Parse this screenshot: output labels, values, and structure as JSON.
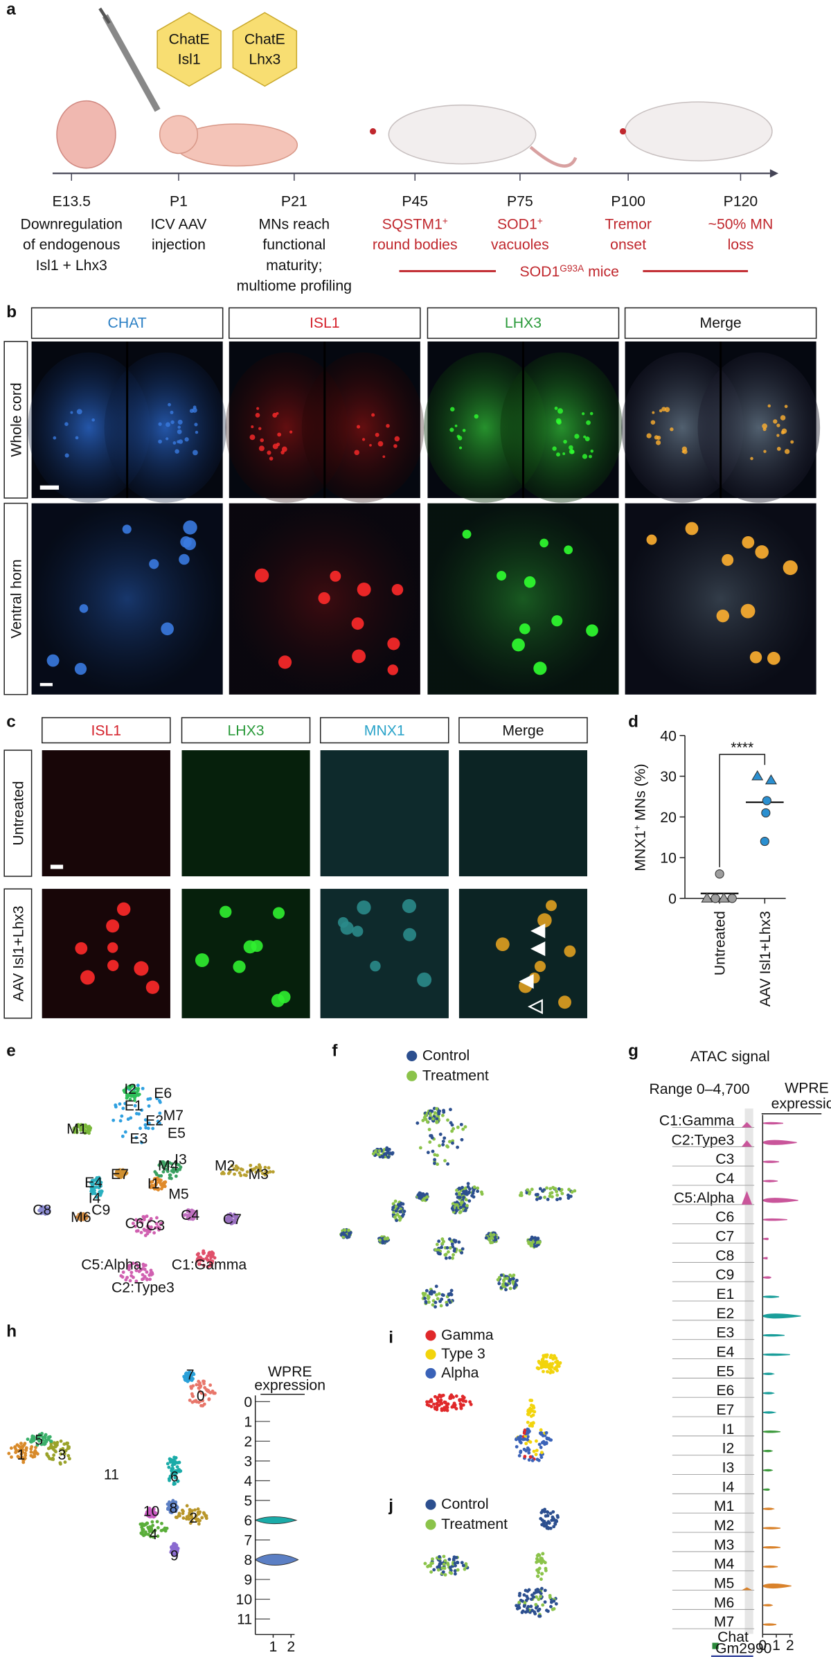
{
  "figure": {
    "a": {
      "label": "a",
      "vectors": [
        [
          "ChatE",
          "Isl1"
        ],
        [
          "ChatE",
          "Lhx3"
        ]
      ],
      "timeline": [
        {
          "time": "E13.5",
          "lines": [
            "Downregulation",
            "of endogenous",
            "Isl1 + Lhx3"
          ]
        },
        {
          "time": "P1",
          "lines": [
            "ICV AAV",
            "injection"
          ]
        },
        {
          "time": "P21",
          "lines": [
            "MNs reach",
            "functional",
            "maturity;",
            "multiome profiling"
          ]
        },
        {
          "time": "P45",
          "lines": [
            {
              "text": "SQSTM1",
              "sup": "+"
            },
            "round bodies"
          ],
          "color": "#c0272d"
        },
        {
          "time": "P75",
          "lines": [
            {
              "text": "SOD1",
              "sup": "+"
            },
            "vacuoles"
          ],
          "color": "#c0272d"
        },
        {
          "time": "P100",
          "lines": [
            "Tremor",
            "onset"
          ],
          "color": "#c0272d"
        },
        {
          "time": "P120",
          "lines": [
            "~50% MN",
            "loss"
          ],
          "color": "#c0272d"
        }
      ],
      "model": {
        "text": "SOD1",
        "sup": "G93A",
        "after": " mice"
      },
      "model_color": "#c0272d"
    },
    "b": {
      "label": "b",
      "columns": [
        {
          "name": "CHAT",
          "color": "#2a7fc4"
        },
        {
          "name": "ISL1",
          "color": "#d4202a"
        },
        {
          "name": "LHX3",
          "color": "#2a9a3a"
        },
        {
          "name": "Merge",
          "color": "#111111"
        }
      ],
      "rows": [
        "Whole cord",
        "Ventral horn"
      ]
    },
    "c": {
      "label": "c",
      "columns": [
        {
          "name": "ISL1",
          "color": "#d4202a"
        },
        {
          "name": "LHX3",
          "color": "#2a9a3a"
        },
        {
          "name": "MNX1",
          "color": "#29a3c9"
        },
        {
          "name": "Merge",
          "color": "#111111"
        }
      ],
      "rows": [
        "Untreated",
        "AAV Isl1+Lhx3"
      ]
    },
    "e": {
      "label": "e",
      "clusters": [
        "I2",
        "E6",
        "E1",
        "M7",
        "E2",
        "E3",
        "E5",
        "M1",
        "M2",
        "M3",
        "E4",
        "E7",
        "M4",
        "I3",
        "I1",
        "M5",
        "C8",
        "I4",
        "C9",
        "M6",
        "C6",
        "C3",
        "C4",
        "C7",
        "C5:Alpha",
        "C1:Gamma",
        "C2:Type3"
      ]
    },
    "f": {
      "label": "f",
      "legend": [
        {
          "name": "Control",
          "color": "#2c4f8f"
        },
        {
          "name": "Treatment",
          "color": "#8bc34a"
        }
      ]
    },
    "i": {
      "label": "i",
      "legend": [
        {
          "name": "Gamma",
          "color": "#e0282a"
        },
        {
          "name": "Type 3",
          "color": "#f2d40c"
        },
        {
          "name": "Alpha",
          "color": "#3a62b8"
        }
      ]
    },
    "j": {
      "label": "j",
      "legend": [
        {
          "name": "Control",
          "color": "#2c4f8f"
        },
        {
          "name": "Treatment",
          "color": "#8bc34a"
        }
      ]
    }
  },
  "chart_data": [
    {
      "type": "dot",
      "label": "d",
      "ylabel": {
        "text": "MNX1",
        "sup": "+",
        "after": " MNs (%)"
      },
      "categories": [
        "Untreated",
        "AAV Isl1+Lhx3"
      ],
      "values": [
        [
          0,
          0,
          0,
          0,
          6
        ],
        [
          30,
          29,
          24,
          21,
          14
        ]
      ],
      "means": [
        1.2,
        23.6
      ],
      "colors": [
        "#9e9e9e",
        "#2a8fd0"
      ],
      "markers": [
        [
          "triangle",
          "circle",
          "triangle",
          "circle",
          "circle"
        ],
        [
          "triangle",
          "triangle",
          "circle",
          "circle",
          "circle"
        ]
      ],
      "significance": "****",
      "ylim": [
        0,
        40
      ],
      "yticks": [
        0,
        10,
        20,
        30,
        40
      ]
    },
    {
      "type": "violin",
      "label": "g",
      "title": "ATAC signal",
      "range_label": "Range 0–4,700",
      "xlabel": [
        "WPRE",
        "expression"
      ],
      "categories": [
        "C1:Gamma",
        "C2:Type3",
        "C3",
        "C4",
        "C5:Alpha",
        "C6",
        "C7",
        "C8",
        "C9",
        "E1",
        "E2",
        "E3",
        "E4",
        "E5",
        "E6",
        "E7",
        "I1",
        "I2",
        "I3",
        "I4",
        "M1",
        "M2",
        "M3",
        "M4",
        "M5",
        "M6",
        "M7"
      ],
      "values": [
        1.5,
        2.5,
        1.2,
        1.1,
        2.6,
        1.8,
        0.4,
        0.3,
        0.6,
        1.2,
        2.8,
        1.6,
        2.0,
        0.8,
        0.8,
        0.9,
        1.3,
        0.7,
        0.7,
        0.5,
        0.8,
        1.3,
        1.3,
        1.1,
        2.1,
        0.7,
        1.0
      ],
      "atac_peaks": [
        1500,
        1800,
        0,
        0,
        3800,
        0,
        0,
        0,
        0,
        0,
        0,
        0,
        0,
        0,
        0,
        0,
        0,
        0,
        0,
        0,
        0,
        0,
        0,
        0,
        800,
        0,
        0
      ],
      "atac_ylim": [
        0,
        4700
      ],
      "colors": [
        "#c9559a",
        "#c9559a",
        "#c9559a",
        "#c9559a",
        "#c9559a",
        "#c9559a",
        "#c9559a",
        "#c9559a",
        "#c9559a",
        "#1a9e9a",
        "#1a9e9a",
        "#1a9e9a",
        "#1a9e9a",
        "#1a9e9a",
        "#1a9e9a",
        "#1a9e9a",
        "#3d9a3d",
        "#3d9a3d",
        "#3d9a3d",
        "#3d9a3d",
        "#d9822b",
        "#d9822b",
        "#d9822b",
        "#d9822b",
        "#d9822b",
        "#d9822b",
        "#d9822b"
      ],
      "xlim": [
        0,
        3
      ],
      "xticks": [
        0,
        1,
        2
      ],
      "track_labels": [
        "Chat",
        "Gm2990"
      ]
    },
    {
      "type": "violin",
      "label": "h",
      "xlabel": [
        "WPRE",
        "expression"
      ],
      "categories": [
        "0",
        "1",
        "2",
        "3",
        "4",
        "5",
        "6",
        "7",
        "8",
        "9",
        "10",
        "11"
      ],
      "values": [
        0,
        0,
        0,
        0,
        0,
        0,
        2.3,
        0,
        2.4,
        0,
        0,
        0
      ],
      "colors": [
        "#e8766a",
        "#d88a2a",
        "#b8962a",
        "#9aa22a",
        "#5aae3a",
        "#3ab06a",
        "#1aaba8",
        "#2aa0d8",
        "#5b7fc4",
        "#8a6ad0",
        "#c85ac0",
        "#e05a9a"
      ],
      "xlim": [
        0,
        2.5
      ],
      "xticks": [
        1,
        2
      ]
    }
  ]
}
